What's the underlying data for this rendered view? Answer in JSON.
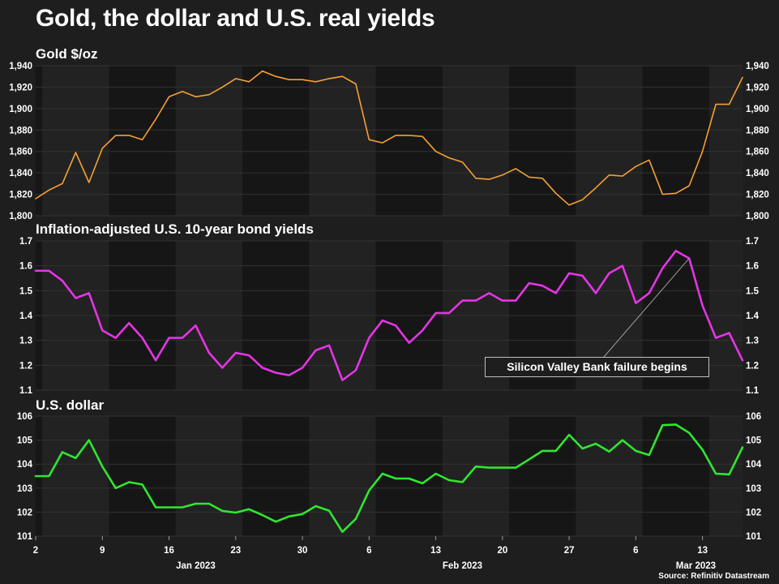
{
  "title": "Gold, the dollar and U.S. real yields",
  "source": "Source: Refinitiv Datastream",
  "annotation": "Silicon Valley Bank failure begins",
  "colors": {
    "background": "#1e1e1e",
    "panel_dark": "#161616",
    "panel_light": "#222222",
    "gridline": "#323232",
    "gold": "#f5a033",
    "yields": "#e534e5",
    "dollar": "#2ee82e"
  },
  "chart_data": [
    {
      "type": "line",
      "title": "Gold $/oz",
      "ylim": [
        1800,
        1940
      ],
      "yticks": [
        1800,
        1820,
        1840,
        1860,
        1880,
        1900,
        1920,
        1940
      ],
      "ytick_labels": [
        "1,800",
        "1,820",
        "1,840",
        "1,860",
        "1,880",
        "1,900",
        "1,920",
        "1,940"
      ],
      "series": [
        {
          "name": "Gold $/oz",
          "values": [
            1816,
            1824,
            1830,
            1859,
            1831,
            1863,
            1875,
            1875,
            1871,
            1890,
            1911,
            1916,
            1911,
            1913,
            1920,
            1928,
            1925,
            1935,
            1930,
            1927,
            1927,
            1925,
            1928,
            1930,
            1923,
            1871,
            1868,
            1875,
            1875,
            1874,
            1860,
            1854,
            1850,
            1835,
            1834,
            1838,
            1844,
            1836,
            1835,
            1821,
            1810,
            1815,
            1826,
            1838,
            1837,
            1846,
            1852,
            1820,
            1821,
            1828,
            1860,
            1904,
            1904,
            1929
          ]
        }
      ]
    },
    {
      "type": "line",
      "title": "Inflation-adjusted U.S. 10-year bond yields",
      "ylim": [
        1.1,
        1.7
      ],
      "yticks": [
        1.1,
        1.2,
        1.3,
        1.4,
        1.5,
        1.6,
        1.7
      ],
      "ytick_labels": [
        "1.1",
        "1.2",
        "1.3",
        "1.4",
        "1.5",
        "1.6",
        "1.7"
      ],
      "series": [
        {
          "name": "Real 10-year yield (%)",
          "values": [
            1.58,
            1.58,
            1.54,
            1.47,
            1.49,
            1.34,
            1.31,
            1.37,
            1.31,
            1.22,
            1.31,
            1.31,
            1.36,
            1.25,
            1.19,
            1.25,
            1.24,
            1.19,
            1.17,
            1.16,
            1.19,
            1.26,
            1.28,
            1.14,
            1.18,
            1.31,
            1.38,
            1.36,
            1.29,
            1.34,
            1.41,
            1.41,
            1.46,
            1.46,
            1.49,
            1.46,
            1.46,
            1.53,
            1.52,
            1.49,
            1.57,
            1.56,
            1.49,
            1.57,
            1.6,
            1.45,
            1.49,
            1.59,
            1.66,
            1.63,
            1.44,
            1.31,
            1.33,
            1.22
          ]
        }
      ]
    },
    {
      "type": "line",
      "title": "U.S. dollar",
      "ylim": [
        101,
        106
      ],
      "yticks": [
        101,
        102,
        103,
        104,
        105,
        106
      ],
      "ytick_labels": [
        "101",
        "102",
        "103",
        "104",
        "105",
        "106"
      ],
      "series": [
        {
          "name": "U.S. dollar index",
          "values": [
            103.5,
            103.5,
            104.5,
            104.25,
            105.0,
            103.9,
            103.0,
            103.25,
            103.15,
            102.2,
            102.2,
            102.2,
            102.35,
            102.35,
            102.05,
            101.98,
            102.12,
            101.88,
            101.6,
            101.82,
            101.92,
            102.25,
            102.06,
            101.18,
            101.72,
            102.9,
            103.6,
            103.4,
            103.4,
            103.2,
            103.6,
            103.33,
            103.25,
            103.9,
            103.85,
            103.85,
            103.85,
            104.2,
            104.55,
            104.55,
            105.22,
            104.65,
            104.85,
            104.52,
            105.0,
            104.55,
            104.38,
            105.62,
            105.65,
            105.3,
            104.6,
            103.6,
            103.57,
            104.7
          ]
        }
      ]
    }
  ],
  "x_axis": {
    "day_ticks": [
      {
        "label": "2",
        "index": 0
      },
      {
        "label": "9",
        "index": 5
      },
      {
        "label": "16",
        "index": 10
      },
      {
        "label": "23",
        "index": 15
      },
      {
        "label": "30",
        "index": 20
      },
      {
        "label": "6",
        "index": 25
      },
      {
        "label": "13",
        "index": 30
      },
      {
        "label": "20",
        "index": 35
      },
      {
        "label": "27",
        "index": 40
      },
      {
        "label": "6",
        "index": 45
      },
      {
        "label": "13",
        "index": 50
      }
    ],
    "month_labels": [
      {
        "label": "Jan 2023",
        "index": 12
      },
      {
        "label": "Feb 2023",
        "index": 32
      },
      {
        "label": "Mar 2023",
        "index": 49.5
      }
    ],
    "shading_boundaries": [
      0.5,
      5.5,
      10.5,
      15.5,
      20.5,
      25.5,
      30.5,
      35.5,
      40.5,
      45.5,
      50.5
    ]
  }
}
